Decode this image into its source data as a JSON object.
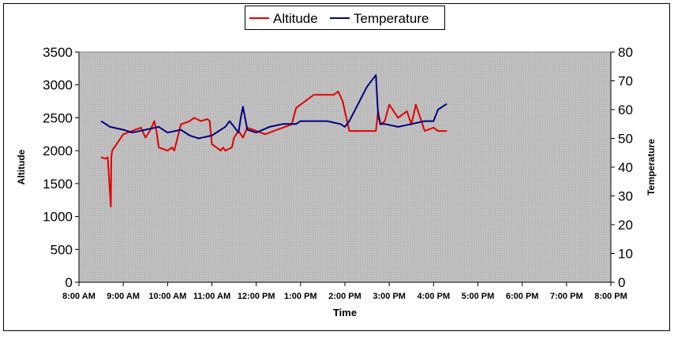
{
  "chart_data": {
    "type": "line",
    "xlabel": "Time",
    "ylabel": "Altitude",
    "y2label": "Temperature",
    "x_ticks": [
      "8:00 AM",
      "9:00 AM",
      "10:00 AM",
      "11:00 AM",
      "12:00 PM",
      "1:00 PM",
      "2:00 PM",
      "3:00 PM",
      "4:00 PM",
      "5:00 PM",
      "6:00 PM",
      "7:00 PM",
      "8:00 PM"
    ],
    "xlim_hours": [
      8,
      20
    ],
    "ylim": [
      0,
      3500
    ],
    "y_ticks": [
      0,
      500,
      1000,
      1500,
      2000,
      2500,
      3000,
      3500
    ],
    "y2lim": [
      0,
      80
    ],
    "y2_ticks": [
      0,
      10,
      20,
      30,
      40,
      50,
      60,
      70,
      80
    ],
    "legend_position": "top-center",
    "grid": false,
    "plot_background": "#c0c0c0",
    "series": [
      {
        "name": "Altitude",
        "axis": "left",
        "color": "#e00000",
        "x_hours": [
          8.5,
          8.6,
          8.65,
          8.72,
          8.73,
          8.75,
          8.85,
          9.0,
          9.2,
          9.4,
          9.5,
          9.6,
          9.7,
          9.75,
          9.8,
          10.0,
          10.1,
          10.15,
          10.3,
          10.5,
          10.6,
          10.75,
          10.9,
          10.95,
          11.0,
          11.2,
          11.25,
          11.3,
          11.45,
          11.5,
          11.6,
          11.7,
          11.8,
          12.0,
          12.2,
          12.4,
          12.6,
          12.8,
          12.9,
          13.0,
          13.1,
          13.3,
          13.5,
          13.75,
          13.85,
          13.95,
          14.0,
          14.1,
          14.5,
          14.7,
          14.75,
          14.8,
          14.9,
          15.0,
          15.2,
          15.4,
          15.5,
          15.6,
          15.8,
          16.0,
          16.1,
          16.2,
          16.3
        ],
        "values": [
          1900,
          1880,
          1900,
          1150,
          1900,
          2000,
          2100,
          2250,
          2300,
          2350,
          2200,
          2300,
          2450,
          2300,
          2050,
          2000,
          2050,
          2000,
          2400,
          2450,
          2500,
          2450,
          2480,
          2450,
          2100,
          2000,
          2050,
          2000,
          2050,
          2200,
          2300,
          2200,
          2350,
          2300,
          2250,
          2300,
          2350,
          2400,
          2650,
          2700,
          2750,
          2850,
          2850,
          2850,
          2900,
          2750,
          2600,
          2300,
          2300,
          2300,
          2600,
          2400,
          2450,
          2700,
          2500,
          2600,
          2400,
          2700,
          2300,
          2350,
          2300,
          2300,
          2300
        ]
      },
      {
        "name": "Temperature",
        "axis": "right",
        "color": "#000080",
        "x_hours": [
          8.5,
          8.7,
          9.0,
          9.2,
          9.5,
          9.8,
          10.0,
          10.3,
          10.5,
          10.7,
          11.0,
          11.3,
          11.4,
          11.5,
          11.6,
          11.65,
          11.7,
          11.8,
          12.0,
          12.3,
          12.6,
          12.9,
          13.0,
          13.3,
          13.6,
          13.9,
          14.0,
          14.1,
          14.5,
          14.7,
          14.75,
          14.8,
          14.9,
          15.2,
          15.5,
          15.8,
          16.0,
          16.1,
          16.2,
          16.3
        ],
        "values": [
          56,
          54,
          53,
          52,
          53,
          54,
          52,
          53,
          51,
          50,
          51,
          54,
          56,
          54,
          52,
          57,
          61,
          53,
          52,
          54,
          55,
          55,
          56,
          56,
          56,
          55,
          54,
          56,
          68,
          72,
          58,
          55,
          55,
          54,
          55,
          56,
          56,
          60,
          61,
          62
        ]
      }
    ]
  }
}
